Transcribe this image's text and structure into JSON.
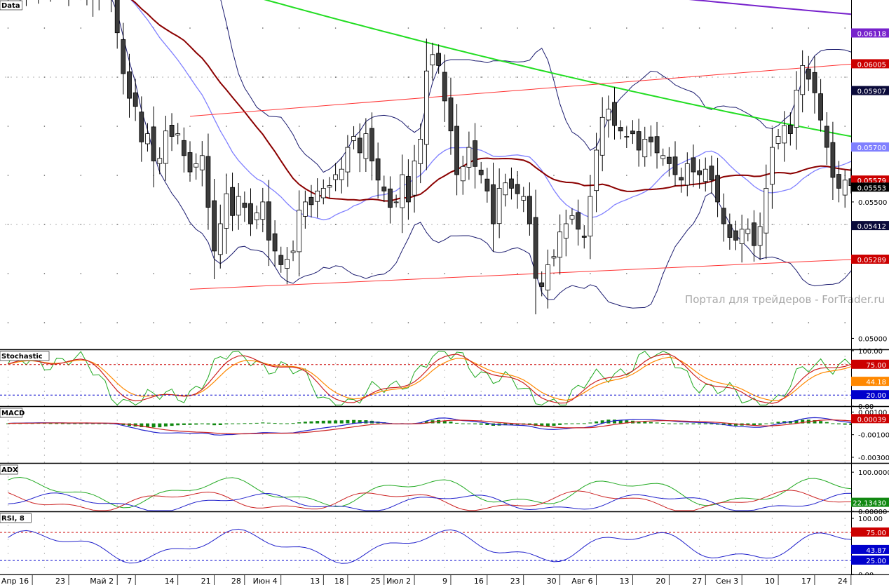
{
  "watermark": "Портал для трейдеров - ForTrader.ru",
  "colors": {
    "bull": "#ffffff",
    "bear": "#3c3c3c",
    "wick": "#000000",
    "bollinger": "#1a1a6e",
    "bollinger_mid": "#8080ff",
    "ma_dark": "#8b0000",
    "ma_green": "#22dd22",
    "ma_purple": "#7722cc",
    "channel": "#ff3333"
  },
  "chart_data": [
    {
      "panel": "price",
      "type": "candlestick",
      "title": "Data",
      "ylim": [
        0.0496,
        0.0624
      ],
      "y_ticks": [
        "0.05500",
        "0.05000"
      ],
      "price_labels": [
        {
          "text": "0.06118",
          "value": 0.06118,
          "color": "#7722cc"
        },
        {
          "text": "0.06005",
          "value": 0.06005,
          "color": "#cc0000"
        },
        {
          "text": "0.05907",
          "value": 0.05907,
          "color": "#0a0a3a"
        },
        {
          "text": "0.05700",
          "value": 0.057,
          "color": "#8080ff"
        },
        {
          "text": "0.05579",
          "value": 0.05579,
          "color": "#cc0000"
        },
        {
          "text": "0.05553",
          "value": 0.05553,
          "color": "#000000"
        },
        {
          "text": "0.05412",
          "value": 0.05412,
          "color": "#0a0a3a"
        },
        {
          "text": "0.05289",
          "value": 0.05289,
          "color": "#cc0000"
        }
      ],
      "x_labels": [
        {
          "text": "Апр 16",
          "index": 4
        },
        {
          "text": "23",
          "index": 10
        },
        {
          "text": "Май 2",
          "index": 18
        },
        {
          "text": "7",
          "index": 21
        },
        {
          "text": "14",
          "index": 28
        },
        {
          "text": "21",
          "index": 34
        },
        {
          "text": "28",
          "index": 39
        },
        {
          "text": "Июн 4",
          "index": 45
        },
        {
          "text": "13",
          "index": 52
        },
        {
          "text": "18",
          "index": 56
        },
        {
          "text": "25",
          "index": 62
        },
        {
          "text": "Июл 2",
          "index": 67
        },
        {
          "text": "9",
          "index": 73
        },
        {
          "text": "16",
          "index": 79
        },
        {
          "text": "23",
          "index": 85
        },
        {
          "text": "30",
          "index": 91
        },
        {
          "text": "Авг 6",
          "index": 97
        },
        {
          "text": "13",
          "index": 103
        },
        {
          "text": "20",
          "index": 109
        },
        {
          "text": "27",
          "index": 115
        },
        {
          "text": "Сен 3",
          "index": 121
        },
        {
          "text": "10",
          "index": 127
        },
        {
          "text": "17",
          "index": 133
        },
        {
          "text": "24",
          "index": 139
        }
      ],
      "closes": [
        0.0627,
        0.0632,
        0.0628,
        0.0631,
        0.0629,
        0.0633,
        0.063,
        0.0628,
        0.0631,
        0.0629,
        0.0627,
        0.063,
        0.0628,
        0.0632,
        0.0625,
        0.063,
        0.0628,
        0.0626,
        0.0612,
        0.0597,
        0.0588,
        0.0585,
        0.0572,
        0.0575,
        0.0565,
        0.0566,
        0.0576,
        0.0574,
        0.0575,
        0.0567,
        0.0561,
        0.0564,
        0.0567,
        0.0548,
        0.0532,
        0.0542,
        0.0553,
        0.0545,
        0.0552,
        0.0548,
        0.0542,
        0.0546,
        0.055,
        0.0536,
        0.0532,
        0.0527,
        0.0529,
        0.0532,
        0.0547,
        0.055,
        0.0549,
        0.0554,
        0.0555,
        0.0556,
        0.056,
        0.0562,
        0.057,
        0.0574,
        0.0568,
        0.0575,
        0.0565,
        0.0558,
        0.0554,
        0.0548,
        0.055,
        0.056,
        0.055,
        0.0565,
        0.0573,
        0.0598,
        0.0604,
        0.06,
        0.0587,
        0.0576,
        0.056,
        0.0563,
        0.057,
        0.0563,
        0.056,
        0.0554,
        0.0542,
        0.0555,
        0.0557,
        0.0555,
        0.0553,
        0.0552,
        0.0542,
        0.0522,
        0.0519,
        0.0527,
        0.053,
        0.0539,
        0.0542,
        0.0545,
        0.054,
        0.0537,
        0.0552,
        0.0569,
        0.0581,
        0.0584,
        0.0578,
        0.0576,
        0.0574,
        0.0575,
        0.0569,
        0.0573,
        0.0572,
        0.0568,
        0.0567,
        0.0564,
        0.056,
        0.0558,
        0.0564,
        0.0561,
        0.056,
        0.0562,
        0.0558,
        0.055,
        0.0542,
        0.0537,
        0.0536,
        0.054,
        0.054,
        0.0534,
        0.0541,
        0.0555,
        0.057,
        0.0574,
        0.0578,
        0.0575,
        0.0591,
        0.06,
        0.0595,
        0.059,
        0.058,
        0.057,
        0.0559,
        0.0555,
        0.0558,
        0.0556,
        0.0559,
        0.0555
      ]
    },
    {
      "panel": "stochastic",
      "type": "line",
      "title": "Stochastic",
      "ylim": [
        0,
        100
      ],
      "y_ticks": [
        "100.00",
        "0.00"
      ],
      "levels": [
        {
          "text": "75.00",
          "value": 75,
          "color": "#cc0000"
        },
        {
          "text": "20.00",
          "value": 20,
          "color": "#0000cc"
        }
      ],
      "value_labels": [
        {
          "text": "44.18",
          "value": 44.18,
          "color": "#ff8800"
        }
      ]
    },
    {
      "panel": "macd",
      "type": "line",
      "title": "MACD",
      "ylim": [
        -0.0035,
        0.0014
      ],
      "y_ticks": [
        "0.00100",
        "-0.00100",
        "-0.00300"
      ],
      "value_labels": [
        {
          "text": "0.00039",
          "value": 0.00039,
          "color": "#cc0000"
        }
      ]
    },
    {
      "panel": "adx",
      "type": "line",
      "title": "ADX",
      "ylim": [
        0,
        120
      ],
      "y_ticks": [
        "100.00000",
        "0.00000"
      ],
      "value_labels": [
        {
          "text": "22.13430",
          "value": 22.1343,
          "color": "#118811"
        }
      ]
    },
    {
      "panel": "rsi",
      "type": "line",
      "title": "RSI, 8",
      "ylim": [
        0,
        110
      ],
      "y_ticks": [
        "100.00",
        "0.00"
      ],
      "levels": [
        {
          "text": "75.00",
          "value": 75,
          "color": "#cc0000"
        },
        {
          "text": "25.00",
          "value": 25,
          "color": "#0000cc"
        }
      ],
      "value_labels": [
        {
          "text": "43.87",
          "value": 43.87,
          "color": "#0000cc"
        }
      ]
    }
  ]
}
